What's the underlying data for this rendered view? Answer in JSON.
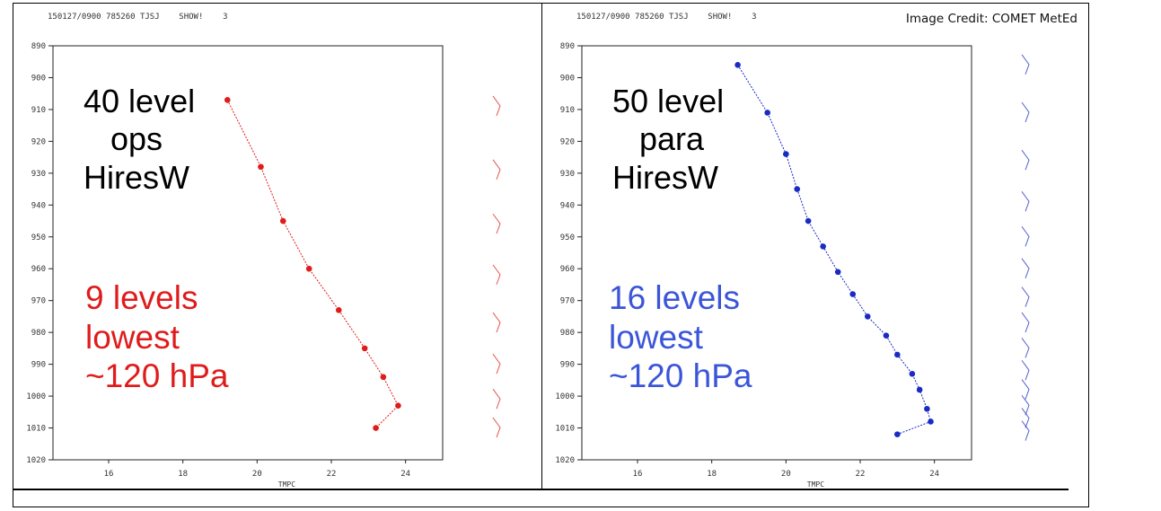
{
  "image_credit": "Image Credit: COMET MetEd",
  "chart_data": [
    {
      "type": "line",
      "header": "150127/0900 785260 TJSJ    SHOW!    3",
      "xlabel": "TMPC",
      "ylabel": "",
      "xlim": [
        14.5,
        25
      ],
      "ylim": [
        1020,
        890
      ],
      "x_ticks": [
        "16",
        "18",
        "20",
        "22",
        "24"
      ],
      "y_ticks": [
        "890",
        "900",
        "910",
        "920",
        "930",
        "940",
        "950",
        "960",
        "970",
        "980",
        "990",
        "1000",
        "1010",
        "1020"
      ],
      "series": [
        {
          "color": "#e01b1b",
          "points": [
            [
              19.2,
              907
            ],
            [
              20.1,
              928
            ],
            [
              20.7,
              945
            ],
            [
              21.4,
              960
            ],
            [
              22.2,
              973
            ],
            [
              22.9,
              985
            ],
            [
              23.4,
              994
            ],
            [
              23.8,
              1003
            ],
            [
              23.2,
              1010
            ]
          ]
        }
      ],
      "wind_barbs_pressure": [
        910,
        930,
        947,
        963,
        978,
        991,
        1002,
        1011
      ],
      "annotation_black": "40 level\n   ops\nHiresW",
      "annotation_colored": "9 levels\nlowest\n~120 hPa",
      "annotation_color": "#e01b1b"
    },
    {
      "type": "line",
      "header": "150127/0900 785260 TJSJ    SHOW!    3",
      "xlabel": "TMPC",
      "ylabel": "",
      "xlim": [
        14.5,
        25
      ],
      "ylim": [
        1020,
        890
      ],
      "x_ticks": [
        "16",
        "18",
        "20",
        "22",
        "24"
      ],
      "y_ticks": [
        "890",
        "900",
        "910",
        "920",
        "930",
        "940",
        "950",
        "960",
        "970",
        "980",
        "990",
        "1000",
        "1010",
        "1020"
      ],
      "series": [
        {
          "color": "#1a2bc4",
          "points": [
            [
              18.7,
              896
            ],
            [
              19.5,
              911
            ],
            [
              20.0,
              924
            ],
            [
              20.3,
              935
            ],
            [
              20.6,
              945
            ],
            [
              21.0,
              953
            ],
            [
              21.4,
              961
            ],
            [
              21.8,
              968
            ],
            [
              22.2,
              975
            ],
            [
              22.7,
              981
            ],
            [
              23.0,
              987
            ],
            [
              23.4,
              993
            ],
            [
              23.6,
              998
            ],
            [
              23.8,
              1004
            ],
            [
              23.9,
              1008
            ],
            [
              23.0,
              1012
            ]
          ]
        }
      ],
      "wind_barbs_pressure": [
        897,
        912,
        927,
        940,
        951,
        961,
        970,
        978,
        986,
        993,
        999,
        1004,
        1008,
        1012
      ],
      "annotation_black": "50 level\n   para\nHiresW",
      "annotation_colored": "16 levels\nlowest\n~120 hPa",
      "annotation_color": "#3b55d9"
    }
  ]
}
